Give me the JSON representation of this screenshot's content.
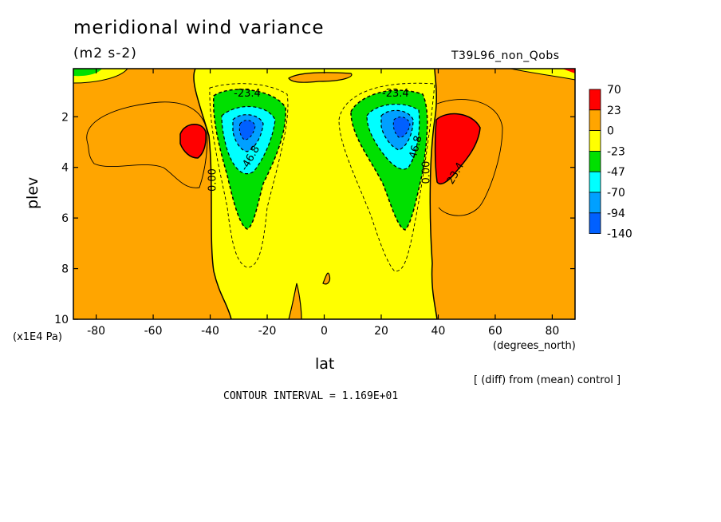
{
  "chart_data": {
    "type": "heatmap",
    "title": "meridional wind variance",
    "units": "(m2 s-2)",
    "run_label": "T39L96_non_Qobs",
    "xlabel": "lat",
    "xunit": "(degrees_north)",
    "ylabel": "plev",
    "yunit": "(x1E4 Pa)",
    "note": "[ (diff) from (mean) control ]",
    "contour_interval_text": "CONTOUR INTERVAL = 1.169E+01",
    "xlim": [
      -88,
      88
    ],
    "ylim": [
      10,
      0.1
    ],
    "x_ticks": [
      -80,
      -60,
      -40,
      -20,
      0,
      20,
      40,
      60,
      80
    ],
    "y_ticks": [
      2,
      4,
      6,
      8,
      10
    ],
    "legend": {
      "placement": "right",
      "levels": [
        "70",
        "23",
        "0",
        "-23",
        "-47",
        "-70",
        "-94",
        "-140"
      ],
      "colors": [
        "#ff0000",
        "#ffa500",
        "#ffff00",
        "#00e000",
        "#00ffff",
        "#00a0ff",
        "#0060ff"
      ]
    },
    "contour_labels": [
      {
        "text": "-23.4",
        "lat": -27,
        "plev": 1.2
      },
      {
        "text": "-46.8",
        "lat": -25,
        "plev": 3.7
      },
      {
        "text": "0.00",
        "lat": -38,
        "plev": 4.5
      },
      {
        "text": "-23.4",
        "lat": 25,
        "plev": 1.2
      },
      {
        "text": "-46.8",
        "lat": 33,
        "plev": 3.3
      },
      {
        "text": "0.00",
        "lat": 37,
        "plev": 4.2
      },
      {
        "text": "23.4",
        "lat": 47,
        "plev": 4.3
      }
    ],
    "features": [
      {
        "kind": "max",
        "lat": -46,
        "plev": 2.9,
        "value_range": [
          23,
          70
        ]
      },
      {
        "kind": "max",
        "lat": 45,
        "plev": 3.4,
        "value_range": [
          23,
          70
        ]
      },
      {
        "kind": "min",
        "lat": -27,
        "plev": 2.6,
        "value_range": [
          -140,
          -94
        ]
      },
      {
        "kind": "min",
        "lat": 27,
        "plev": 2.5,
        "value_range": [
          -140,
          -94
        ]
      }
    ]
  }
}
